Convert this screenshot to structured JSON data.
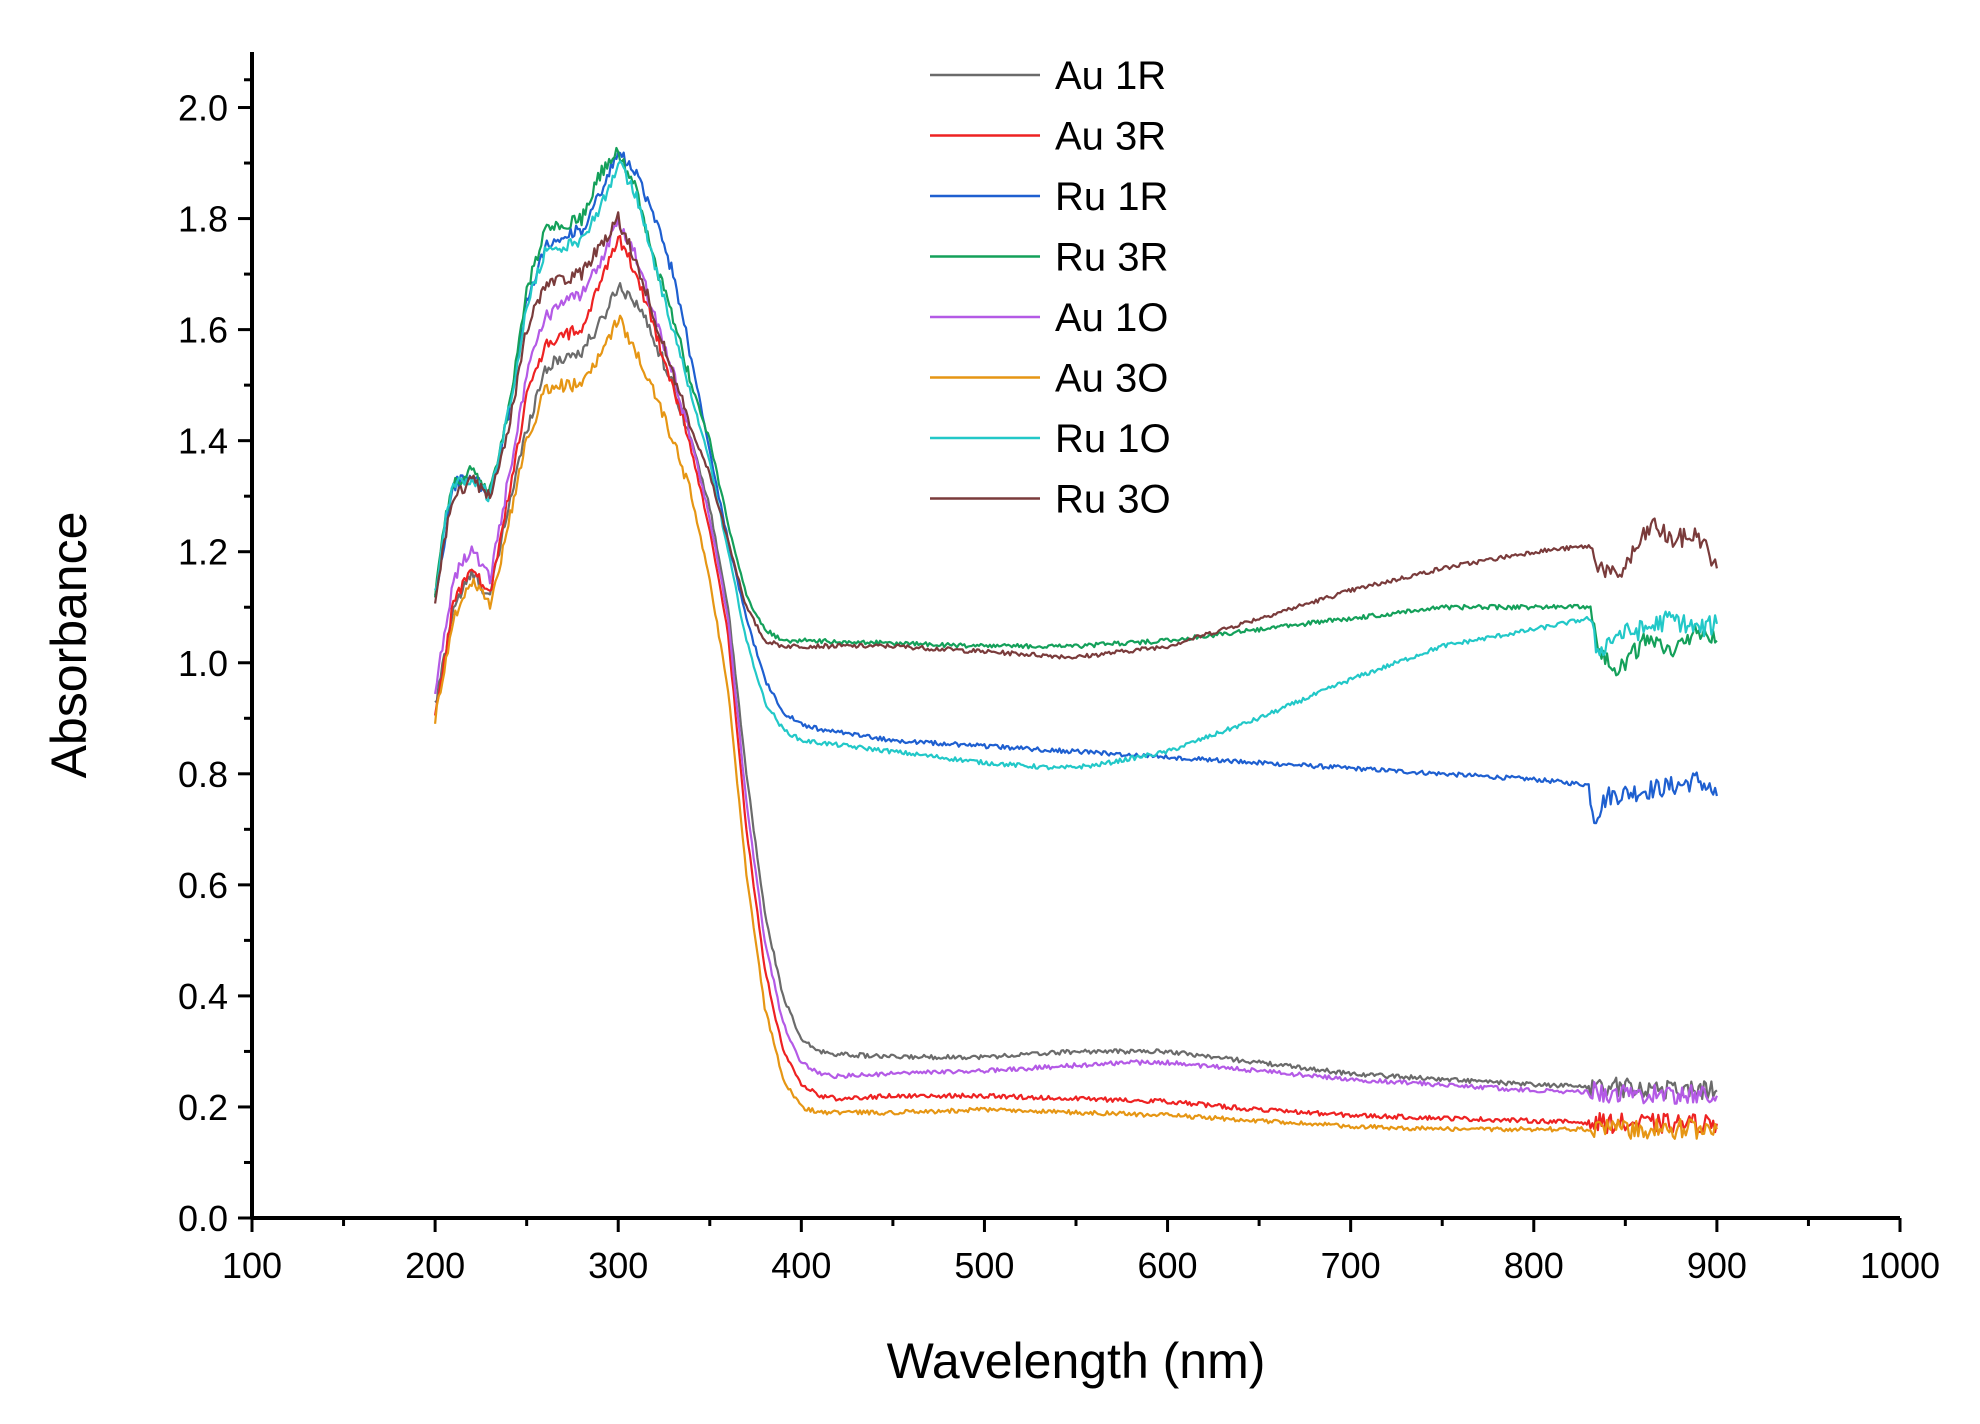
{
  "chart_data": {
    "type": "line",
    "title": "",
    "xlabel": "Wavelength (nm)",
    "ylabel": "Absorbance",
    "xlim": [
      100,
      1000
    ],
    "ylim": [
      0.0,
      2.1
    ],
    "xticks": [
      100,
      200,
      300,
      400,
      500,
      600,
      700,
      800,
      900,
      1000
    ],
    "xtick_labels": [
      "100",
      "200",
      "300",
      "400",
      "500",
      "600",
      "700",
      "800",
      "900",
      "1000"
    ],
    "yticks": [
      0.0,
      0.2,
      0.4,
      0.6,
      0.8,
      1.0,
      1.2,
      1.4,
      1.6,
      1.8,
      2.0
    ],
    "ytick_labels": [
      "0.0",
      "0.2",
      "0.4",
      "0.6",
      "0.8",
      "1.0",
      "1.2",
      "1.4",
      "1.6",
      "1.8",
      "2.0"
    ],
    "grid": false,
    "legend_position": "top-center",
    "series": [
      {
        "name": "Au 1R",
        "color": "#6b6b6b",
        "x": [
          200,
          210,
          220,
          230,
          240,
          250,
          260,
          270,
          280,
          290,
          300,
          310,
          320,
          330,
          340,
          350,
          360,
          370,
          380,
          390,
          400,
          410,
          420,
          450,
          500,
          550,
          580,
          600,
          650,
          700,
          750,
          800,
          850,
          900
        ],
        "y": [
          0.92,
          1.1,
          1.16,
          1.12,
          1.28,
          1.42,
          1.53,
          1.55,
          1.56,
          1.61,
          1.68,
          1.65,
          1.58,
          1.5,
          1.4,
          1.28,
          1.1,
          0.8,
          0.55,
          0.4,
          0.32,
          0.3,
          0.295,
          0.29,
          0.29,
          0.3,
          0.3,
          0.3,
          0.28,
          0.26,
          0.25,
          0.24,
          0.235,
          0.23
        ]
      },
      {
        "name": "Au 3R",
        "color": "#ee2222",
        "x": [
          200,
          210,
          220,
          230,
          240,
          250,
          260,
          270,
          280,
          290,
          300,
          310,
          320,
          330,
          340,
          350,
          360,
          370,
          380,
          390,
          400,
          410,
          420,
          450,
          500,
          550,
          600,
          650,
          700,
          750,
          800,
          850,
          900
        ],
        "y": [
          0.9,
          1.11,
          1.17,
          1.12,
          1.3,
          1.48,
          1.57,
          1.59,
          1.6,
          1.68,
          1.77,
          1.7,
          1.6,
          1.5,
          1.38,
          1.24,
          1.05,
          0.7,
          0.45,
          0.3,
          0.24,
          0.22,
          0.215,
          0.22,
          0.22,
          0.215,
          0.21,
          0.195,
          0.185,
          0.18,
          0.175,
          0.17,
          0.17
        ]
      },
      {
        "name": "Ru 1R",
        "color": "#1e5fd0",
        "x": [
          200,
          205,
          210,
          220,
          230,
          240,
          250,
          260,
          270,
          280,
          290,
          300,
          305,
          310,
          320,
          330,
          340,
          350,
          360,
          370,
          380,
          390,
          400,
          410,
          450,
          500,
          550,
          600,
          650,
          700,
          750,
          800,
          830,
          833,
          840,
          860,
          880,
          890,
          900
        ],
        "y": [
          1.12,
          1.22,
          1.32,
          1.34,
          1.3,
          1.45,
          1.65,
          1.75,
          1.77,
          1.78,
          1.84,
          1.92,
          1.9,
          1.88,
          1.8,
          1.7,
          1.55,
          1.38,
          1.22,
          1.08,
          0.97,
          0.91,
          0.89,
          0.88,
          0.86,
          0.85,
          0.84,
          0.83,
          0.82,
          0.81,
          0.8,
          0.79,
          0.78,
          0.72,
          0.76,
          0.77,
          0.78,
          0.79,
          0.76
        ]
      },
      {
        "name": "Ru 3R",
        "color": "#14a05a",
        "x": [
          200,
          205,
          210,
          220,
          230,
          240,
          250,
          260,
          270,
          280,
          290,
          300,
          310,
          320,
          330,
          340,
          350,
          360,
          370,
          380,
          390,
          400,
          450,
          500,
          550,
          600,
          650,
          700,
          750,
          800,
          830,
          835,
          845,
          860,
          875,
          890,
          900
        ],
        "y": [
          1.12,
          1.25,
          1.32,
          1.35,
          1.31,
          1.45,
          1.67,
          1.78,
          1.79,
          1.8,
          1.88,
          1.92,
          1.85,
          1.72,
          1.62,
          1.5,
          1.4,
          1.25,
          1.12,
          1.06,
          1.04,
          1.04,
          1.035,
          1.03,
          1.03,
          1.04,
          1.06,
          1.08,
          1.1,
          1.1,
          1.1,
          1.03,
          0.98,
          1.04,
          1.02,
          1.06,
          1.04
        ]
      },
      {
        "name": "Au 1O",
        "color": "#b45ae6",
        "x": [
          200,
          210,
          220,
          230,
          240,
          250,
          260,
          270,
          280,
          290,
          300,
          310,
          320,
          330,
          340,
          350,
          360,
          370,
          380,
          390,
          400,
          410,
          420,
          450,
          500,
          550,
          580,
          600,
          650,
          700,
          750,
          800,
          850,
          900
        ],
        "y": [
          0.95,
          1.15,
          1.21,
          1.15,
          1.33,
          1.52,
          1.62,
          1.65,
          1.66,
          1.72,
          1.8,
          1.73,
          1.62,
          1.52,
          1.4,
          1.26,
          1.08,
          0.75,
          0.5,
          0.35,
          0.28,
          0.26,
          0.255,
          0.26,
          0.265,
          0.275,
          0.28,
          0.28,
          0.265,
          0.25,
          0.24,
          0.23,
          0.225,
          0.22
        ]
      },
      {
        "name": "Au 3O",
        "color": "#e69614",
        "x": [
          200,
          210,
          220,
          230,
          240,
          250,
          260,
          270,
          280,
          290,
          300,
          310,
          320,
          330,
          340,
          350,
          360,
          370,
          380,
          390,
          400,
          410,
          420,
          450,
          500,
          550,
          600,
          650,
          700,
          750,
          800,
          850,
          900
        ],
        "y": [
          0.9,
          1.08,
          1.15,
          1.1,
          1.25,
          1.4,
          1.49,
          1.5,
          1.5,
          1.55,
          1.62,
          1.56,
          1.48,
          1.4,
          1.3,
          1.15,
          0.95,
          0.62,
          0.38,
          0.25,
          0.2,
          0.19,
          0.19,
          0.19,
          0.195,
          0.19,
          0.185,
          0.175,
          0.165,
          0.16,
          0.16,
          0.16,
          0.16
        ]
      },
      {
        "name": "Ru 1O",
        "color": "#22c8c8",
        "x": [
          200,
          205,
          210,
          220,
          230,
          240,
          250,
          260,
          270,
          280,
          290,
          300,
          310,
          320,
          330,
          340,
          350,
          360,
          370,
          380,
          390,
          400,
          450,
          500,
          540,
          560,
          600,
          650,
          700,
          750,
          800,
          830,
          835,
          845,
          860,
          875,
          890,
          900
        ],
        "y": [
          1.12,
          1.25,
          1.32,
          1.33,
          1.3,
          1.45,
          1.64,
          1.74,
          1.75,
          1.76,
          1.82,
          1.9,
          1.84,
          1.72,
          1.6,
          1.48,
          1.36,
          1.2,
          1.04,
          0.93,
          0.88,
          0.86,
          0.84,
          0.82,
          0.81,
          0.815,
          0.84,
          0.9,
          0.97,
          1.03,
          1.06,
          1.08,
          1.02,
          1.05,
          1.06,
          1.08,
          1.06,
          1.07
        ]
      },
      {
        "name": "Ru 3O",
        "color": "#7a3b3b",
        "x": [
          200,
          205,
          210,
          220,
          230,
          240,
          250,
          260,
          270,
          280,
          290,
          300,
          310,
          320,
          330,
          340,
          350,
          360,
          370,
          380,
          390,
          400,
          450,
          500,
          550,
          600,
          650,
          700,
          750,
          800,
          830,
          835,
          845,
          855,
          865,
          875,
          890,
          900
        ],
        "y": [
          1.1,
          1.22,
          1.3,
          1.33,
          1.3,
          1.42,
          1.6,
          1.68,
          1.69,
          1.7,
          1.75,
          1.8,
          1.72,
          1.62,
          1.52,
          1.42,
          1.34,
          1.22,
          1.1,
          1.04,
          1.03,
          1.03,
          1.03,
          1.02,
          1.01,
          1.03,
          1.08,
          1.13,
          1.17,
          1.2,
          1.21,
          1.18,
          1.15,
          1.2,
          1.25,
          1.22,
          1.23,
          1.17
        ]
      }
    ]
  }
}
